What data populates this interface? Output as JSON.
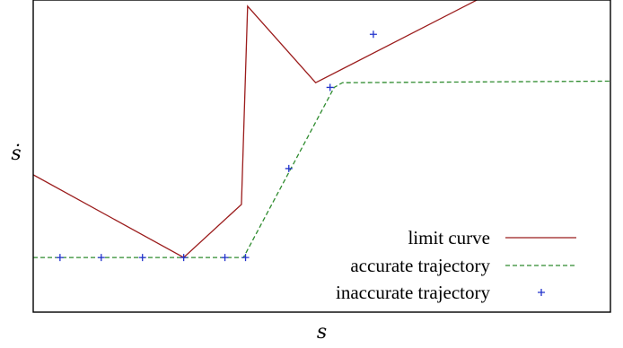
{
  "chart_data": {
    "type": "line",
    "title": "",
    "xlabel": "s",
    "ylabel": "ṡ",
    "xlim": [
      0,
      14
    ],
    "ylim": [
      0,
      10
    ],
    "grid": false,
    "legend_placement": "bottom-right",
    "series": [
      {
        "name": "limit curve",
        "style": "solid",
        "color": "#9b1c1c",
        "x": [
          0,
          3.65,
          5.05,
          5.2,
          6.85,
          11.5
        ],
        "y": [
          4.4,
          1.75,
          3.45,
          9.8,
          7.35,
          10.5
        ]
      },
      {
        "name": "accurate trajectory",
        "style": "dashed",
        "color": "#2e8b2e",
        "x": [
          0,
          5.1,
          7.3,
          7.5,
          14
        ],
        "y": [
          1.75,
          1.75,
          7.2,
          7.35,
          7.4
        ]
      },
      {
        "name": "inaccurate trajectory",
        "style": "markers",
        "color": "#2233cc",
        "x": [
          0.65,
          1.65,
          2.65,
          3.65,
          4.65,
          5.15,
          6.2,
          7.2,
          8.25
        ],
        "y": [
          1.75,
          1.75,
          1.75,
          1.75,
          1.75,
          1.75,
          4.6,
          7.2,
          8.9
        ]
      }
    ]
  }
}
